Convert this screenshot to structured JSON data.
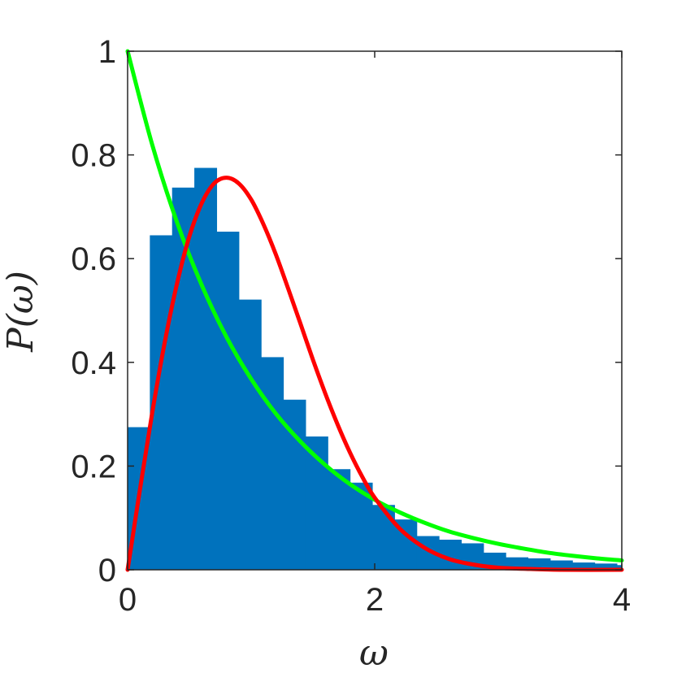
{
  "chart_data": {
    "type": "bar",
    "xlabel": "ω",
    "ylabel": "P(ω)",
    "xlim": [
      0,
      4
    ],
    "ylim": [
      0,
      1
    ],
    "xticks": [
      "0",
      "2",
      "4"
    ],
    "yticks": [
      "0",
      "0.2",
      "0.4",
      "0.6",
      "0.8",
      "1"
    ],
    "grid": false,
    "colors": {
      "bars": "#0072BD",
      "green_curve": "#00FF00",
      "red_curve": "#FF0000",
      "axis": "#262626"
    },
    "histogram": {
      "bin_width": 0.18,
      "bin_edges_start": 0,
      "values": [
        0.275,
        0.645,
        0.737,
        0.775,
        0.652,
        0.521,
        0.41,
        0.328,
        0.257,
        0.194,
        0.168,
        0.125,
        0.097,
        0.065,
        0.058,
        0.051,
        0.033,
        0.024,
        0.022,
        0.018,
        0.014,
        0.012,
        0.009
      ]
    },
    "series": [
      {
        "x": [
          0,
          0.2,
          0.4,
          0.6,
          0.8,
          1.0,
          1.2,
          1.4,
          1.6,
          1.8,
          2.0,
          2.2,
          2.4,
          2.6,
          2.8,
          3.0,
          3.2,
          3.4,
          3.6,
          3.8,
          4.0
        ],
        "y": [
          1.0,
          0.819,
          0.67,
          0.549,
          0.449,
          0.368,
          0.301,
          0.247,
          0.202,
          0.165,
          0.135,
          0.111,
          0.091,
          0.074,
          0.061,
          0.05,
          0.041,
          0.033,
          0.027,
          0.022,
          0.018
        ]
      },
      {
        "x": [
          0,
          0.1,
          0.2,
          0.3,
          0.4,
          0.5,
          0.6,
          0.7,
          0.8,
          0.9,
          1.0,
          1.1,
          1.2,
          1.3,
          1.4,
          1.5,
          1.6,
          1.7,
          1.8,
          1.9,
          2.0,
          2.2,
          2.4,
          2.6,
          2.8,
          3.0,
          3.2,
          3.5,
          4.0
        ],
        "y": [
          0,
          0.155,
          0.304,
          0.438,
          0.552,
          0.643,
          0.707,
          0.745,
          0.756,
          0.745,
          0.714,
          0.666,
          0.608,
          0.542,
          0.474,
          0.405,
          0.34,
          0.28,
          0.226,
          0.179,
          0.139,
          0.08,
          0.043,
          0.021,
          0.01,
          0.004,
          0.002,
          0.0,
          0.0
        ]
      }
    ]
  }
}
